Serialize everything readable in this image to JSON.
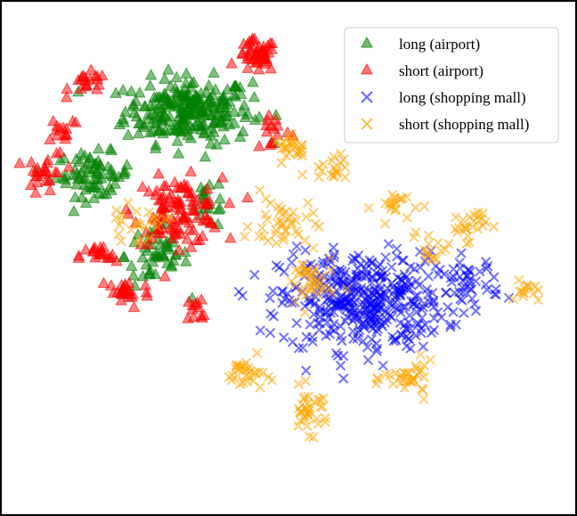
{
  "chart_data": {
    "type": "scatter",
    "title": "",
    "xlabel": "",
    "ylabel": "",
    "xlim": [
      0,
      100
    ],
    "ylim": [
      0,
      100
    ],
    "grid": false,
    "legend_position": "top-right",
    "axes_visible": false,
    "series": [
      {
        "name": "long (airport)",
        "marker": "triangle",
        "color": "#008000",
        "clusters": [
          {
            "center": [
              32,
              80
            ],
            "spread": [
              10,
              6
            ],
            "count": 240
          },
          {
            "center": [
              14,
              66
            ],
            "spread": [
              6,
              4
            ],
            "count": 70
          },
          {
            "center": [
              26,
              48
            ],
            "spread": [
              5,
              6
            ],
            "count": 50
          },
          {
            "center": [
              36,
              60
            ],
            "spread": [
              3,
              5
            ],
            "count": 20
          }
        ]
      },
      {
        "name": "short (airport)",
        "marker": "triangle",
        "color": "#ff0000",
        "clusters": [
          {
            "center": [
              45,
              92
            ],
            "spread": [
              3,
              3
            ],
            "count": 45
          },
          {
            "center": [
              13,
              86
            ],
            "spread": [
              3,
              2
            ],
            "count": 20
          },
          {
            "center": [
              5,
              66
            ],
            "spread": [
              3,
              4
            ],
            "count": 25
          },
          {
            "center": [
              30,
              58
            ],
            "spread": [
              7,
              6
            ],
            "count": 110
          },
          {
            "center": [
              15,
              48
            ],
            "spread": [
              3,
              2
            ],
            "count": 20
          },
          {
            "center": [
              20,
              40
            ],
            "spread": [
              4,
              3
            ],
            "count": 25
          },
          {
            "center": [
              34,
              36
            ],
            "spread": [
              2,
              3
            ],
            "count": 12
          },
          {
            "center": [
              48,
              76
            ],
            "spread": [
              3,
              4
            ],
            "count": 15
          },
          {
            "center": [
              8,
              76
            ],
            "spread": [
              3,
              3
            ],
            "count": 15
          }
        ]
      },
      {
        "name": "long (shopping mall)",
        "marker": "x",
        "color": "#0000ff",
        "clusters": [
          {
            "center": [
              65,
              38
            ],
            "spread": [
              13,
              9
            ],
            "count": 400
          },
          {
            "center": [
              85,
              42
            ],
            "spread": [
              5,
              5
            ],
            "count": 45
          }
        ]
      },
      {
        "name": "short (shopping mall)",
        "marker": "x",
        "color": "#ffa500",
        "clusters": [
          {
            "center": [
              52,
              72
            ],
            "spread": [
              3,
              2
            ],
            "count": 25
          },
          {
            "center": [
              72,
              59
            ],
            "spread": [
              4,
              3
            ],
            "count": 20
          },
          {
            "center": [
              85,
              55
            ],
            "spread": [
              3,
              3
            ],
            "count": 25
          },
          {
            "center": [
              96,
              40
            ],
            "spread": [
              2,
              2
            ],
            "count": 15
          },
          {
            "center": [
              43,
              22
            ],
            "spread": [
              3,
              3
            ],
            "count": 30
          },
          {
            "center": [
              55,
              14
            ],
            "spread": [
              3,
              4
            ],
            "count": 35
          },
          {
            "center": [
              74,
              21
            ],
            "spread": [
              4,
              3
            ],
            "count": 35
          },
          {
            "center": [
              55,
              42
            ],
            "spread": [
              4,
              5
            ],
            "count": 40
          },
          {
            "center": [
              50,
              55
            ],
            "spread": [
              5,
              5
            ],
            "count": 40
          },
          {
            "center": [
              22,
              55
            ],
            "spread": [
              5,
              3
            ],
            "count": 25
          },
          {
            "center": [
              60,
              68
            ],
            "spread": [
              4,
              3
            ],
            "count": 20
          },
          {
            "center": [
              78,
              50
            ],
            "spread": [
              3,
              3
            ],
            "count": 15
          }
        ]
      }
    ]
  }
}
